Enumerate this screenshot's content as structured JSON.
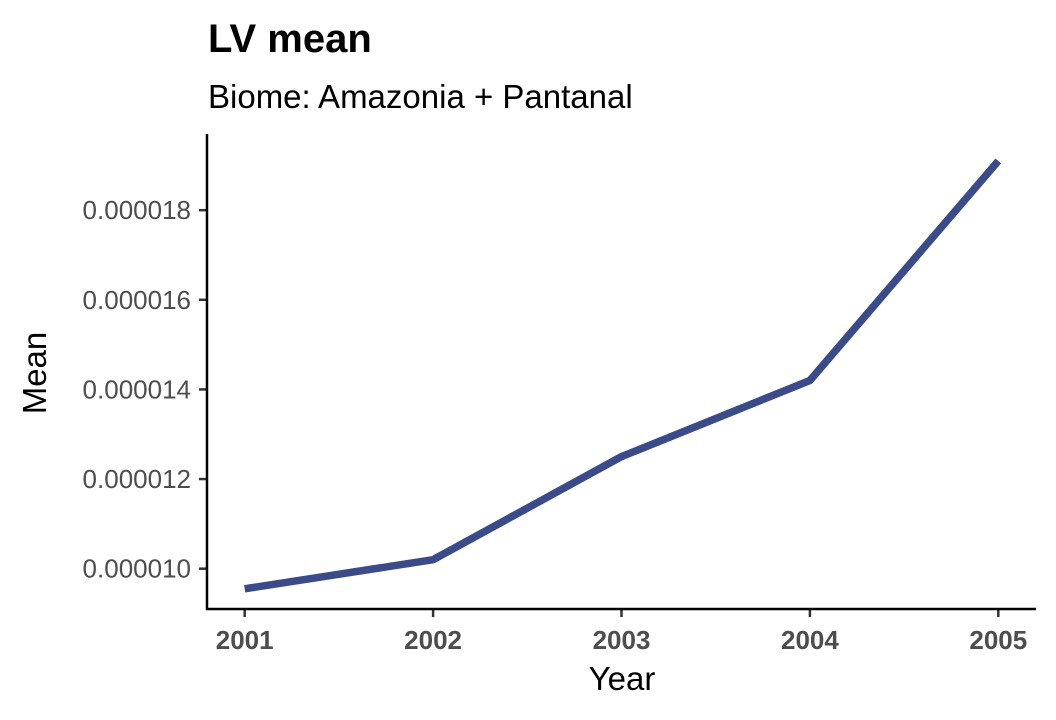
{
  "chart_data": {
    "type": "line",
    "title": "LV mean",
    "subtitle": "Biome: Amazonia + Pantanal",
    "xlabel": "Year",
    "ylabel": "Mean",
    "x": [
      2001,
      2002,
      2003,
      2004,
      2005
    ],
    "series": [
      {
        "values": [
          9.55e-06,
          1.02e-05,
          1.25e-05,
          1.42e-05,
          1.91e-05
        ],
        "color": "#3b4a89"
      }
    ],
    "xticks": [
      "2001",
      "2002",
      "2003",
      "2004",
      "2005"
    ],
    "yticks": [
      {
        "value": 1e-05,
        "label": "0.000010"
      },
      {
        "value": 1.2e-05,
        "label": "0.000012"
      },
      {
        "value": 1.4e-05,
        "label": "0.000014"
      },
      {
        "value": 1.6e-05,
        "label": "0.000016"
      },
      {
        "value": 1.8e-05,
        "label": "0.000018"
      }
    ],
    "xlim": [
      2000.8,
      2005.2
    ],
    "ylim": [
      9.1e-06,
      1.97e-05
    ],
    "grid": false,
    "legend": "none"
  }
}
